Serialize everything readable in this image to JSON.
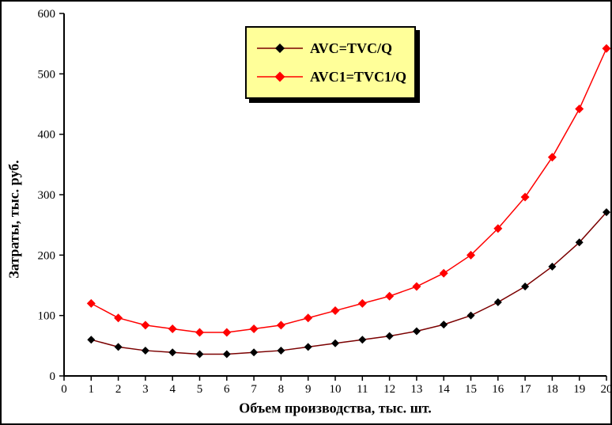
{
  "frame": {
    "background": "#FFFFFF",
    "border_color": "#000000"
  },
  "chart_data": {
    "type": "line",
    "title": "",
    "xlabel": "Объем производства, тыс. шт.",
    "ylabel": "Затраты, тыс. руб.",
    "xlim": [
      0,
      20
    ],
    "ylim": [
      0,
      600
    ],
    "x_ticks": [
      0,
      1,
      2,
      3,
      4,
      5,
      6,
      7,
      8,
      9,
      10,
      11,
      12,
      13,
      14,
      15,
      16,
      17,
      18,
      19,
      20
    ],
    "y_ticks": [
      0,
      100,
      200,
      300,
      400,
      500,
      600
    ],
    "grid": false,
    "x": [
      1,
      2,
      3,
      4,
      5,
      6,
      7,
      8,
      9,
      10,
      11,
      12,
      13,
      14,
      15,
      16,
      17,
      18,
      19,
      20
    ],
    "series": [
      {
        "name": "AVC=TVC/Q",
        "line_color": "#7B0000",
        "marker_color": "#000000",
        "marker": "diamond",
        "marker_size": 5,
        "values": [
          60,
          48,
          42,
          39,
          36,
          36,
          39,
          42,
          48,
          54,
          60,
          66,
          74,
          85,
          100,
          122,
          148,
          181,
          221,
          271
        ]
      },
      {
        "name": "AVC1=TVC1/Q",
        "line_color": "#FF0000",
        "marker_color": "#FF0000",
        "marker": "diamond",
        "marker_size": 5.5,
        "values": [
          120,
          96,
          84,
          78,
          72,
          72,
          78,
          84,
          96,
          108,
          120,
          132,
          148,
          170,
          200,
          244,
          296,
          362,
          442,
          542
        ]
      }
    ],
    "legend": {
      "position": "top-center",
      "background": "#FFFF99",
      "border_color": "#000000",
      "shadow_color": "#000000"
    },
    "axis_color": "#000000",
    "tick_label_fontsize": 15
  }
}
